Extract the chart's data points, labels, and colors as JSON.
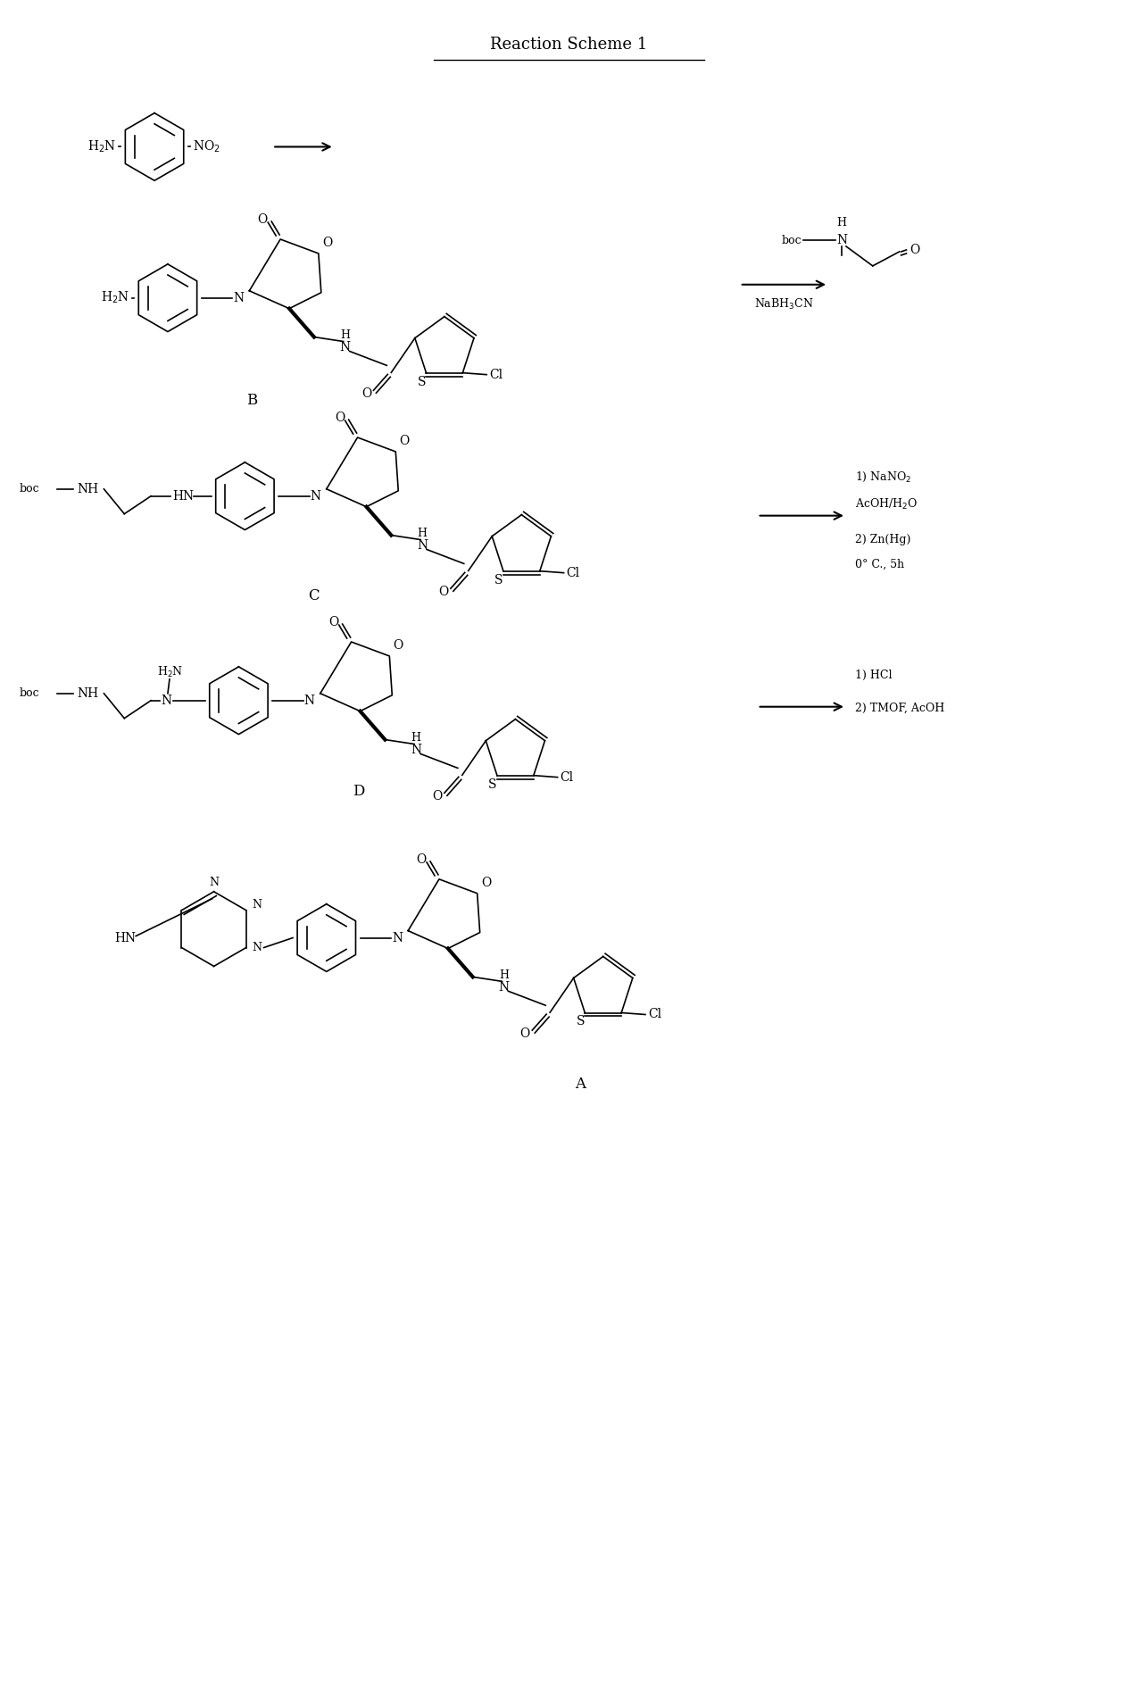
{
  "title": "Reaction Scheme 1",
  "bg_color": "#ffffff",
  "text_color": "#000000",
  "figsize": [
    12.75,
    19.01
  ],
  "dpi": 100,
  "labels": {
    "title": "Reaction Scheme 1",
    "B": "B",
    "C": "C",
    "D": "D",
    "A": "A"
  }
}
